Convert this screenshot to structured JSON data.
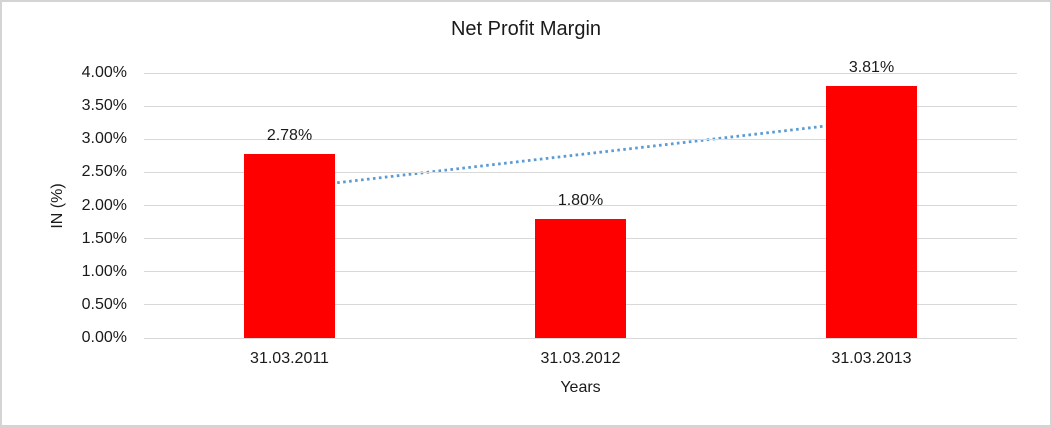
{
  "chart_data": {
    "type": "bar",
    "title": "Net Profit Margin",
    "xlabel": "Years",
    "ylabel": "IN (%)",
    "categories": [
      "31.03.2011",
      "31.03.2012",
      "31.03.2013"
    ],
    "values": [
      2.78,
      1.8,
      3.81
    ],
    "data_labels": [
      "2.78%",
      "1.80%",
      "3.81%"
    ],
    "ylim": [
      0,
      4
    ],
    "ytick_step": 0.5,
    "ytick_labels": [
      "0.00%",
      "0.50%",
      "1.00%",
      "1.50%",
      "2.00%",
      "2.50%",
      "3.00%",
      "3.50%",
      "4.00%"
    ],
    "grid": true,
    "legend_position": "none",
    "bar_color": "#ff0000",
    "trendline": {
      "type": "linear",
      "style": "dotted",
      "color": "#5b9bd5",
      "start_value": 2.26,
      "end_value": 3.28
    }
  },
  "colors": {
    "gridline": "#d9d9d9",
    "text": "#1a1a1a",
    "frame_border": "#d4d4d4",
    "background": "#ffffff"
  }
}
